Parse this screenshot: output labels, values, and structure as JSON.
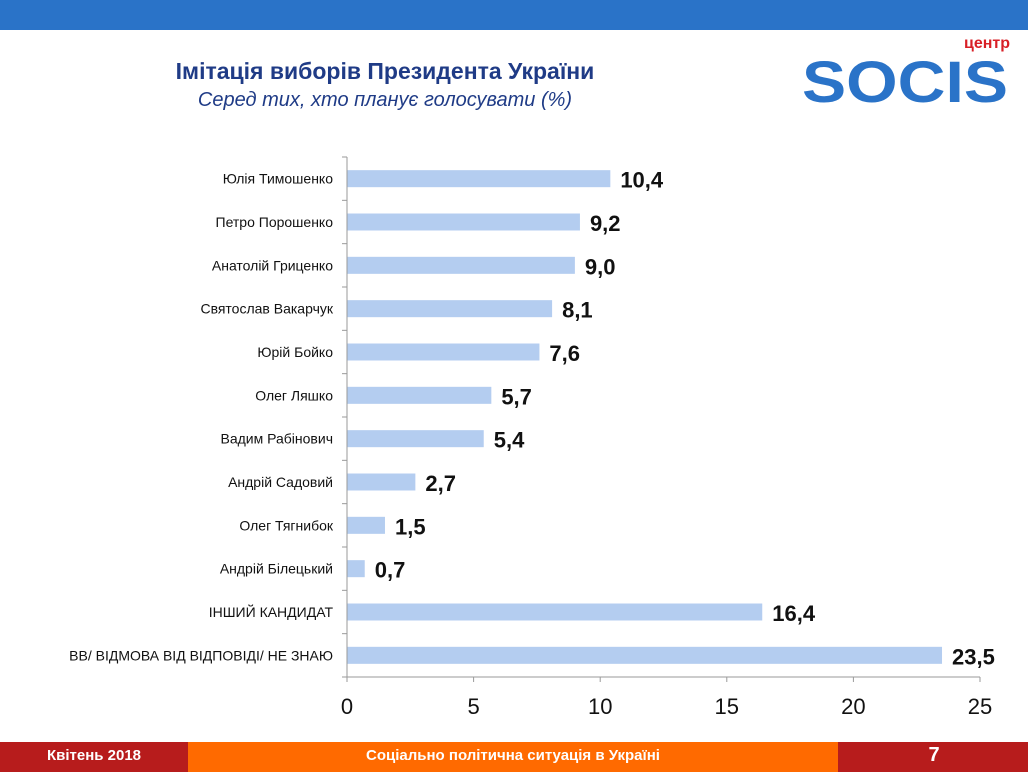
{
  "slide": {
    "title": "Імітація виборів Президента України",
    "subtitle": "Серед тих, хто планує голосувати (%)"
  },
  "logo": {
    "top_text": "центр",
    "brand_text": "SOCIS"
  },
  "footer": {
    "date": "Квітень 2018",
    "topic": "Соціально політична ситуація в Україні",
    "page": "7"
  },
  "colors": {
    "bar": "#b4cdf0",
    "header": "#2a73c8",
    "footer_red": "#b71c1c",
    "footer_orange": "#ff6a00",
    "title": "#1f3b86",
    "logo_blue": "#2a73c8",
    "logo_red": "#d81f26"
  },
  "chart_data": {
    "type": "bar",
    "orientation": "horizontal",
    "categories": [
      "Юлія Тимошенко",
      "Петро Порошенко",
      "Анатолій Гриценко",
      "Святослав Вакарчук",
      "Юрій Бойко",
      "Олег Ляшко",
      "Вадим Рабінович",
      "Андрій Садовий",
      "Олег Тягнибок",
      "Андрій Білецький",
      "ІНШИЙ КАНДИДАТ",
      "ВВ/ ВІДМОВА ВІД ВІДПОВІДІ/ НЕ ЗНАЮ"
    ],
    "values": [
      10.4,
      9.2,
      9.0,
      8.1,
      7.6,
      5.7,
      5.4,
      2.7,
      1.5,
      0.7,
      16.4,
      23.5
    ],
    "value_labels": [
      "10,4",
      "9,2",
      "9,0",
      "8,1",
      "7,6",
      "5,7",
      "5,4",
      "2,7",
      "1,5",
      "0,7",
      "16,4",
      "23,5"
    ],
    "xlim": [
      0,
      25
    ],
    "xticks": [
      0,
      5,
      10,
      15,
      20,
      25
    ],
    "xtick_labels": [
      "0",
      "5",
      "10",
      "15",
      "20",
      "25"
    ],
    "title": "Імітація виборів Президента України",
    "xlabel": "",
    "ylabel": ""
  }
}
